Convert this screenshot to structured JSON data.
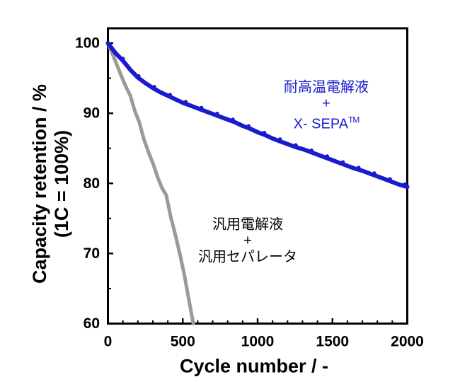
{
  "figure": {
    "background": "#ffffff",
    "frame_color": "#000000",
    "axis_tick_color": "#000000"
  },
  "chart_data": {
    "type": "line",
    "title": "",
    "xlabel": "Cycle number / -",
    "ylabel": "Capacity retention / % (1C = 100%)",
    "ylabel_line1": "Capacity retention / %",
    "ylabel_line2": "(1C = 100%)",
    "xlim": [
      0,
      2000
    ],
    "ylim": [
      60,
      102.3
    ],
    "grid": false,
    "legend_position": "none (in-plot annotations)",
    "x_major_ticks": [
      0,
      500,
      1000,
      1500,
      2000
    ],
    "x_tick_labels": [
      "0",
      "500",
      "1000",
      "1500",
      "2000"
    ],
    "x_minor_ticks": [
      100,
      200,
      300,
      400,
      600,
      700,
      800,
      900,
      1100,
      1200,
      1300,
      1400,
      1600,
      1700,
      1800,
      1900
    ],
    "y_major_ticks": [
      100,
      90,
      80,
      70,
      60
    ],
    "y_tick_labels": [
      "100",
      "90",
      "80",
      "70",
      "60"
    ],
    "y_minor_ticks": [
      95,
      85,
      75,
      65
    ],
    "series": [
      {
        "name": "耐高温電解液 + X-SEPA(TM)",
        "color": "#1b1bcd",
        "line_width": 6,
        "x": [
          0,
          50,
          100,
          150,
          200,
          250,
          300,
          350,
          400,
          450,
          500,
          550,
          600,
          650,
          700,
          750,
          800,
          850,
          900,
          950,
          1000,
          1050,
          1100,
          1150,
          1200,
          1250,
          1300,
          1350,
          1400,
          1450,
          1500,
          1550,
          1600,
          1650,
          1700,
          1750,
          1800,
          1850,
          1900,
          1950,
          2000
        ],
        "y": [
          100,
          98.6,
          97.5,
          96.2,
          95.1,
          94.3,
          93.6,
          93.0,
          92.5,
          92.0,
          91.5,
          91.1,
          90.7,
          90.3,
          89.9,
          89.5,
          89.1,
          88.7,
          88.2,
          87.8,
          87.3,
          86.9,
          86.4,
          86.0,
          85.6,
          85.2,
          84.9,
          84.5,
          84.1,
          83.7,
          83.3,
          82.9,
          82.5,
          82.1,
          81.8,
          81.4,
          81.0,
          80.6,
          80.2,
          79.8,
          79.5
        ],
        "marker_x": [
          100,
          205,
          310,
          415,
          520,
          625,
          730,
          835,
          940,
          1045,
          1150,
          1255,
          1360,
          1465,
          1570,
          1675,
          1780,
          1885,
          1985
        ]
      },
      {
        "name": "汎用電解液 + 汎用セパレータ",
        "color": "#9a9a9a",
        "line_width": 5,
        "x": [
          0,
          30,
          60,
          90,
          120,
          150,
          180,
          210,
          240,
          270,
          300,
          330,
          360,
          390,
          420,
          450,
          480,
          510,
          540,
          570
        ],
        "y": [
          100,
          98.5,
          96.9,
          95.3,
          93.8,
          92.5,
          90.3,
          88.7,
          86.3,
          84.5,
          82.9,
          81.0,
          79.4,
          78.3,
          75.2,
          72.7,
          70.0,
          67.0,
          63.5,
          60.0
        ]
      }
    ],
    "annotations": [
      {
        "id": "durable",
        "lines": [
          "耐高温電解液",
          "+",
          "X- SEPA"
        ],
        "tm": "TM",
        "color": "#1b1bcd"
      },
      {
        "id": "generic",
        "lines": [
          "汎用電解液",
          "+",
          "汎用セパレータ"
        ],
        "color": "#000000"
      }
    ]
  }
}
